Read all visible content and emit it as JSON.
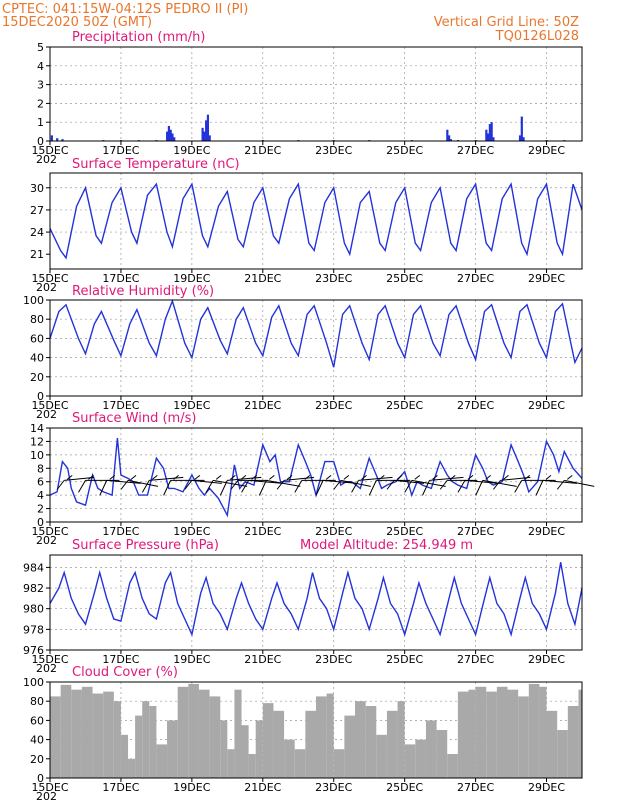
{
  "header": {
    "line1": "CPTEC:   041:15W-04:12S   PEDRO II (PI)",
    "line2": "15DEC2020 50Z (GMT)",
    "grid_note": "Vertical Grid Line: 50Z",
    "code": "TQ0126L028"
  },
  "colors": {
    "header": "#e8772e",
    "title": "#e0187a",
    "line": "#2333d9",
    "cloud": "#a9a9a9"
  },
  "x_axis": {
    "start_day": 15,
    "end_day": 30,
    "tick_days": [
      15,
      17,
      19,
      21,
      23,
      25,
      27,
      29
    ],
    "tick_labels": [
      "15DEC",
      "17DEC",
      "19DEC",
      "21DEC",
      "23DEC",
      "25DEC",
      "27DEC",
      "29DEC"
    ],
    "corner_label": "202"
  },
  "chart_data": [
    {
      "key": "precip",
      "type": "bar",
      "title": "Precipitation (mm/h)",
      "ylim": [
        0,
        5
      ],
      "yticks": [
        0,
        1,
        2,
        3,
        4,
        5
      ],
      "grid": true,
      "x": [
        15.05,
        15.2,
        15.35,
        16.5,
        17.0,
        17.5,
        18.0,
        18.3,
        18.35,
        18.4,
        18.45,
        18.5,
        19.3,
        19.35,
        19.4,
        19.45,
        19.5,
        21.0,
        22.0,
        23.0,
        24.0,
        25.2,
        26.2,
        26.25,
        26.3,
        26.5,
        27.0,
        27.3,
        27.35,
        27.4,
        27.45,
        27.5,
        28.25,
        28.3,
        28.35,
        29.0,
        29.5
      ],
      "values": [
        0.3,
        0.15,
        0.1,
        0.05,
        0.05,
        0.05,
        0.05,
        0.5,
        0.8,
        0.6,
        0.4,
        0.2,
        0.7,
        0.5,
        1.1,
        1.4,
        0.3,
        0.05,
        0.05,
        0.05,
        0.05,
        0.05,
        0.6,
        0.3,
        0.1,
        0.05,
        0.05,
        0.6,
        0.4,
        0.9,
        1.0,
        0.2,
        0.3,
        1.3,
        0.2,
        0.05,
        0.05
      ]
    },
    {
      "key": "temp",
      "type": "line",
      "title": "Surface Temperature (nC)",
      "ylim": [
        19,
        32
      ],
      "yticks": [
        21,
        24,
        27,
        30
      ],
      "grid": true,
      "x": [
        15.0,
        15.3,
        15.45,
        15.75,
        16.0,
        16.3,
        16.45,
        16.75,
        17.0,
        17.3,
        17.45,
        17.75,
        18.0,
        18.3,
        18.45,
        18.75,
        19.0,
        19.3,
        19.45,
        19.75,
        20.0,
        20.3,
        20.45,
        20.75,
        21.0,
        21.3,
        21.45,
        21.75,
        22.0,
        22.3,
        22.45,
        22.75,
        23.0,
        23.3,
        23.45,
        23.75,
        24.0,
        24.3,
        24.45,
        24.75,
        25.0,
        25.3,
        25.45,
        25.75,
        26.0,
        26.3,
        26.45,
        26.75,
        27.0,
        27.3,
        27.45,
        27.75,
        28.0,
        28.3,
        28.45,
        28.75,
        29.0,
        29.3,
        29.45,
        29.75,
        30.0
      ],
      "values": [
        24.5,
        21.5,
        20.5,
        27.5,
        30,
        23.5,
        22.5,
        28.0,
        30.0,
        24.0,
        22.5,
        29.0,
        30.5,
        24.0,
        22.0,
        28.5,
        30.5,
        23.5,
        22.0,
        27.5,
        29.5,
        23.0,
        22.0,
        28.0,
        30.0,
        23.5,
        22.5,
        28.5,
        30.5,
        22.5,
        21.5,
        28.0,
        30.0,
        22.5,
        21.0,
        28.0,
        29.5,
        22.5,
        21.5,
        28.0,
        30.0,
        22.5,
        21.5,
        28.0,
        30.0,
        22.5,
        21.5,
        28.5,
        30.5,
        22.5,
        21.5,
        28.5,
        30.5,
        22.5,
        21.0,
        28.5,
        30.5,
        22.5,
        21.0,
        30.5,
        27.0
      ]
    },
    {
      "key": "rh",
      "type": "line",
      "title": "Relative Humidity (%)",
      "ylim": [
        0,
        100
      ],
      "yticks": [
        0,
        20,
        40,
        60,
        80,
        100
      ],
      "grid": true,
      "x": [
        15.0,
        15.25,
        15.45,
        15.8,
        16.0,
        16.25,
        16.45,
        16.8,
        17.0,
        17.25,
        17.45,
        17.8,
        18.0,
        18.25,
        18.45,
        18.8,
        19.0,
        19.25,
        19.45,
        19.8,
        20.0,
        20.25,
        20.45,
        20.8,
        21.0,
        21.25,
        21.45,
        21.8,
        22.0,
        22.25,
        22.45,
        22.8,
        23.0,
        23.25,
        23.45,
        23.8,
        24.0,
        24.25,
        24.45,
        24.8,
        25.0,
        25.25,
        25.45,
        25.8,
        26.0,
        26.25,
        26.45,
        26.8,
        27.0,
        27.25,
        27.45,
        27.8,
        28.0,
        28.25,
        28.45,
        28.8,
        29.0,
        29.25,
        29.45,
        29.8,
        30.0
      ],
      "values": [
        60,
        88,
        95,
        60,
        44,
        75,
        88,
        58,
        42,
        75,
        90,
        55,
        42,
        80,
        99,
        55,
        40,
        80,
        92,
        58,
        44,
        80,
        92,
        55,
        42,
        82,
        94,
        55,
        42,
        85,
        94,
        55,
        30,
        85,
        94,
        55,
        38,
        85,
        94,
        55,
        40,
        85,
        94,
        55,
        42,
        85,
        94,
        55,
        38,
        88,
        95,
        55,
        40,
        88,
        95,
        55,
        40,
        88,
        96,
        35,
        50
      ]
    },
    {
      "key": "wind",
      "type": "line",
      "title": "Surface Wind (m/s)",
      "ylim": [
        0,
        14
      ],
      "yticks": [
        0,
        2,
        4,
        6,
        8,
        10,
        12,
        14
      ],
      "grid": true,
      "x": [
        15.0,
        15.2,
        15.35,
        15.5,
        15.6,
        15.75,
        16.0,
        16.2,
        16.35,
        16.5,
        16.75,
        16.9,
        17.0,
        17.2,
        17.35,
        17.5,
        17.75,
        18.0,
        18.2,
        18.35,
        18.5,
        18.75,
        19.0,
        19.2,
        19.35,
        19.5,
        19.75,
        20.0,
        20.2,
        20.35,
        20.5,
        20.75,
        21.0,
        21.2,
        21.35,
        21.5,
        21.75,
        22.0,
        22.2,
        22.35,
        22.5,
        22.75,
        23.0,
        23.2,
        23.35,
        23.5,
        23.75,
        24.0,
        24.2,
        24.35,
        24.5,
        24.75,
        25.0,
        25.2,
        25.35,
        25.5,
        25.75,
        26.0,
        26.2,
        26.35,
        26.5,
        26.75,
        27.0,
        27.2,
        27.35,
        27.5,
        27.75,
        28.0,
        28.2,
        28.35,
        28.5,
        28.75,
        29.0,
        29.2,
        29.35,
        29.5,
        29.75,
        30.0
      ],
      "values": [
        4,
        4.5,
        9,
        8,
        5,
        3,
        2.5,
        7,
        5,
        4.5,
        4,
        12.5,
        7,
        6.5,
        6,
        4,
        4,
        9.5,
        8,
        5,
        5,
        4.5,
        7,
        5,
        4,
        5,
        3.5,
        1,
        8.5,
        5,
        6,
        5.5,
        11.5,
        9,
        10,
        6,
        6,
        11.5,
        9,
        7,
        4,
        9,
        9,
        5.5,
        6,
        6,
        5,
        9.5,
        7,
        5,
        5.5,
        6,
        7.5,
        4,
        6,
        5.5,
        5,
        9,
        7,
        6,
        5.5,
        5,
        10,
        8,
        6,
        5.5,
        6,
        11.5,
        9,
        7,
        4.5,
        6,
        12,
        10,
        7.5,
        10.5,
        8,
        6.5
      ],
      "barbs_x": [
        15.4,
        16.0,
        16.6,
        17.2,
        17.8,
        18.4,
        19.0,
        19.6,
        20.0,
        20.3,
        20.6,
        21.1,
        21.6,
        22.1,
        22.7,
        23.2,
        23.7,
        24.2,
        24.7,
        25.2,
        25.7,
        26.2,
        26.7,
        27.2,
        27.7,
        28.3,
        28.9,
        29.5
      ]
    },
    {
      "key": "pres",
      "type": "line",
      "title": "Surface Pressure (hPa)",
      "subtitle": "Model Altitude: 254.949  m",
      "ylim": [
        976,
        985.2
      ],
      "yticks": [
        976,
        978,
        980,
        982,
        984
      ],
      "grid": true,
      "x": [
        15.0,
        15.25,
        15.4,
        15.6,
        15.8,
        16.0,
        16.25,
        16.4,
        16.6,
        16.8,
        17.0,
        17.25,
        17.4,
        17.6,
        17.8,
        18.0,
        18.25,
        18.4,
        18.6,
        18.8,
        19.0,
        19.25,
        19.4,
        19.6,
        19.8,
        20.0,
        20.25,
        20.4,
        20.6,
        20.8,
        21.0,
        21.25,
        21.4,
        21.6,
        21.8,
        22.0,
        22.25,
        22.4,
        22.6,
        22.8,
        23.0,
        23.25,
        23.4,
        23.6,
        23.8,
        24.0,
        24.25,
        24.4,
        24.6,
        24.8,
        25.0,
        25.25,
        25.4,
        25.6,
        25.8,
        26.0,
        26.25,
        26.4,
        26.6,
        26.8,
        27.0,
        27.25,
        27.4,
        27.6,
        27.8,
        28.0,
        28.25,
        28.4,
        28.6,
        28.8,
        29.0,
        29.25,
        29.4,
        29.6,
        29.8,
        30.0
      ],
      "values": [
        980.5,
        982,
        983.5,
        981,
        979.5,
        978.5,
        981.5,
        983.5,
        981,
        979,
        978.8,
        982.5,
        983.5,
        981,
        979.5,
        979,
        982.5,
        983.5,
        980.5,
        979,
        977.5,
        981.5,
        983,
        980.5,
        979.5,
        978,
        981,
        982.5,
        980.5,
        979,
        978,
        981,
        982.5,
        980.5,
        979.5,
        978,
        981,
        983.5,
        981,
        980,
        978,
        981.5,
        983.5,
        981,
        980,
        978,
        981,
        983,
        980.5,
        979.5,
        977.5,
        980.5,
        982.5,
        980.5,
        979,
        977.5,
        981,
        983,
        980.5,
        979,
        977.5,
        981,
        983,
        980.5,
        979.5,
        977.5,
        981,
        983,
        980.5,
        979.5,
        978,
        981.5,
        984.5,
        980.5,
        978.5,
        982
      ]
    },
    {
      "key": "cloud",
      "type": "area",
      "title": "Cloud Cover (%)",
      "ylim": [
        0,
        100
      ],
      "yticks": [
        0,
        20,
        40,
        60,
        80,
        100
      ],
      "grid": true,
      "x": [
        15.0,
        15.3,
        15.6,
        15.9,
        16.2,
        16.5,
        16.8,
        17.0,
        17.2,
        17.4,
        17.6,
        17.8,
        18.0,
        18.3,
        18.6,
        18.9,
        19.2,
        19.5,
        19.8,
        20.0,
        20.2,
        20.4,
        20.6,
        20.8,
        21.0,
        21.3,
        21.6,
        21.9,
        22.2,
        22.5,
        22.8,
        23.0,
        23.3,
        23.6,
        23.9,
        24.2,
        24.5,
        24.8,
        25.0,
        25.3,
        25.6,
        25.9,
        26.2,
        26.5,
        26.8,
        27.0,
        27.3,
        27.6,
        27.9,
        28.2,
        28.5,
        28.8,
        29.0,
        29.3,
        29.6,
        29.9
      ],
      "values": [
        85,
        97,
        92,
        95,
        88,
        90,
        80,
        45,
        20,
        65,
        80,
        75,
        35,
        60,
        95,
        98,
        92,
        85,
        60,
        30,
        92,
        55,
        25,
        60,
        78,
        70,
        40,
        30,
        70,
        85,
        88,
        30,
        65,
        80,
        75,
        45,
        70,
        80,
        35,
        40,
        60,
        50,
        25,
        90,
        92,
        95,
        90,
        95,
        92,
        85,
        98,
        95,
        70,
        50,
        75,
        92
      ]
    }
  ]
}
